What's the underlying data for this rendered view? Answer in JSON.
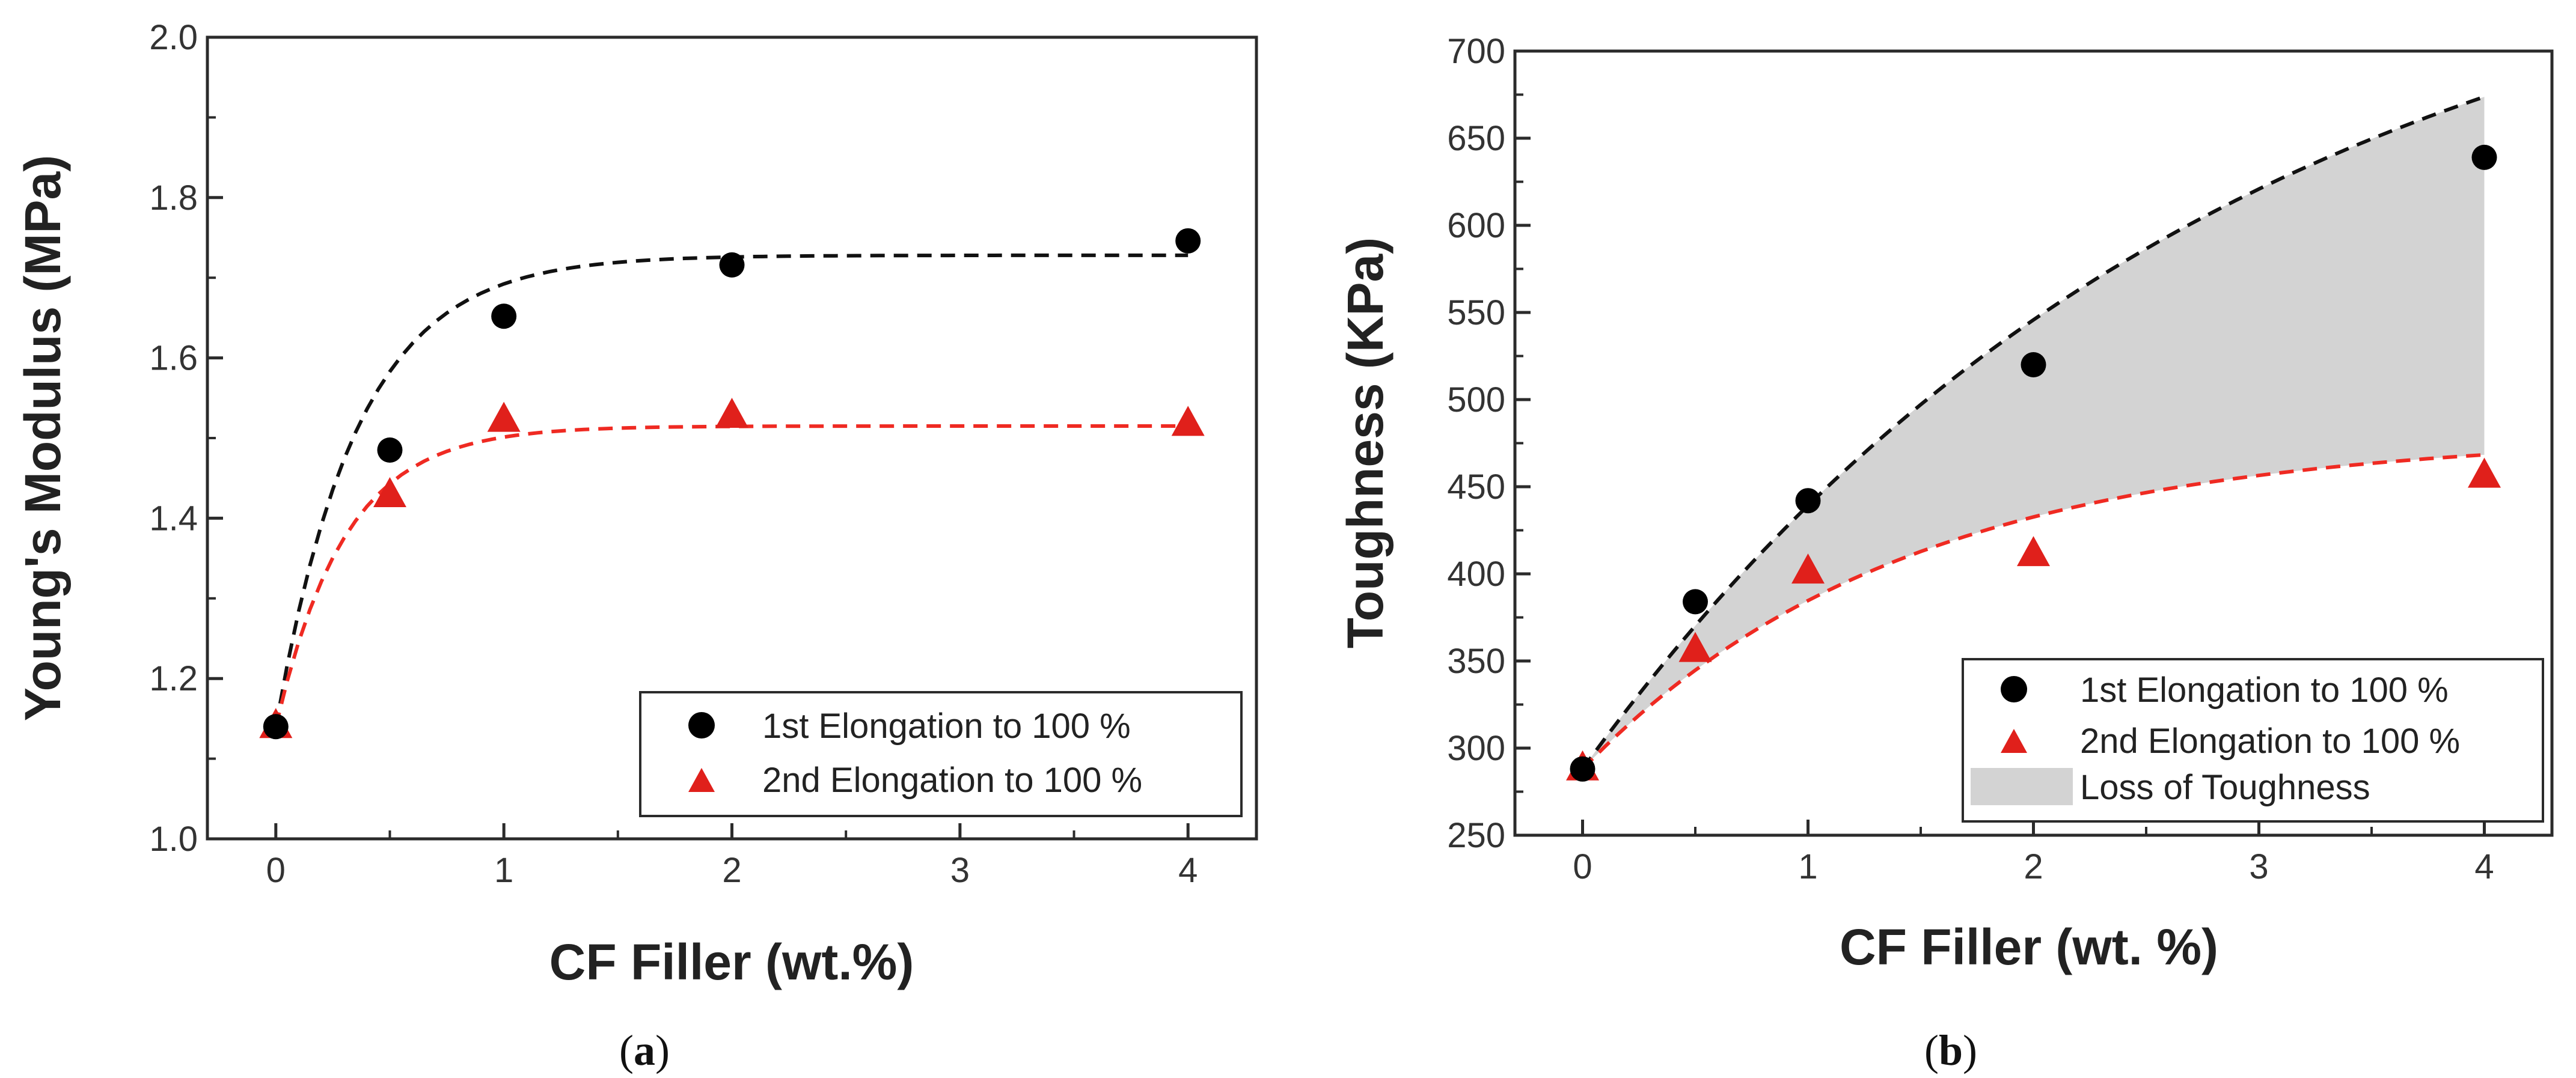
{
  "chart_data": [
    {
      "type": "scatter",
      "panel": "(a)",
      "caption_letter": "a",
      "title": "",
      "xlabel": "CF Filler (wt.%)",
      "ylabel": "Young's Modulus (MPa)",
      "xlim": [
        -0.3,
        4.3
      ],
      "ylim": [
        1.0,
        2.0
      ],
      "xticks": [
        0,
        1,
        2,
        3,
        4
      ],
      "xtick_labels": [
        "0",
        "1",
        "2",
        "3",
        "4"
      ],
      "yticks": [
        1.0,
        1.2,
        1.4,
        1.6,
        1.8,
        2.0
      ],
      "ytick_labels": [
        "1.0",
        "1.2",
        "1.4",
        "1.6",
        "1.8",
        "2.0"
      ],
      "legend_position": "bottom-right",
      "series": [
        {
          "name": "1st Elongation to 100 %",
          "marker": "circle",
          "color": "#000000",
          "x": [
            0,
            0.5,
            1,
            2,
            4
          ],
          "y": [
            1.14,
            1.485,
            1.652,
            1.716,
            1.746
          ],
          "fit": {
            "style": "dashed",
            "form": "exponential-rise",
            "y0": 1.14,
            "asymptote": 1.728,
            "rate": 2.8
          }
        },
        {
          "name": "2nd Elongation to 100 %",
          "marker": "triangle",
          "color": "#e0201b",
          "x": [
            0,
            0.5,
            1,
            2,
            4
          ],
          "y": [
            1.14,
            1.428,
            1.522,
            1.527,
            1.517
          ],
          "fit": {
            "style": "dashed",
            "form": "exponential-rise",
            "y0": 1.14,
            "asymptote": 1.515,
            "rate": 3.3
          }
        }
      ]
    },
    {
      "type": "scatter",
      "panel": "(b)",
      "caption_letter": "b",
      "title": "",
      "xlabel": "CF Filler (wt. %)",
      "ylabel": "Toughness (KPa)",
      "xlim": [
        -0.3,
        4.3
      ],
      "ylim": [
        250,
        700
      ],
      "xticks": [
        0,
        1,
        2,
        3,
        4
      ],
      "xtick_labels": [
        "0",
        "1",
        "2",
        "3",
        "4"
      ],
      "yticks": [
        250,
        300,
        350,
        400,
        450,
        500,
        550,
        600,
        650,
        700
      ],
      "ytick_labels": [
        "250",
        "300",
        "350",
        "400",
        "450",
        "500",
        "550",
        "600",
        "650",
        "700"
      ],
      "legend_position": "bottom-right",
      "series": [
        {
          "name": "1st Elongation to 100 %",
          "marker": "circle",
          "color": "#000000",
          "x": [
            0,
            0.5,
            1,
            2,
            4
          ],
          "y": [
            288,
            384,
            442,
            520,
            639
          ],
          "fit": {
            "style": "dashed",
            "form": "exponential-rise",
            "y0": 288,
            "asymptote": 800,
            "rate": 0.35
          }
        },
        {
          "name": "2nd Elongation to 100 %",
          "marker": "triangle",
          "color": "#e0201b",
          "x": [
            0,
            0.5,
            1,
            2,
            4
          ],
          "y": [
            288,
            356,
            401,
            411,
            456
          ],
          "fit": {
            "style": "dashed",
            "form": "exponential-rise",
            "y0": 288,
            "asymptote": 480,
            "rate": 0.7
          }
        }
      ],
      "shaded_region": {
        "name": "Loss of Toughness",
        "between": [
          "1st Elongation to 100 %",
          "2nd Elongation to 100 %"
        ],
        "color": "#d3d3d3"
      }
    }
  ]
}
